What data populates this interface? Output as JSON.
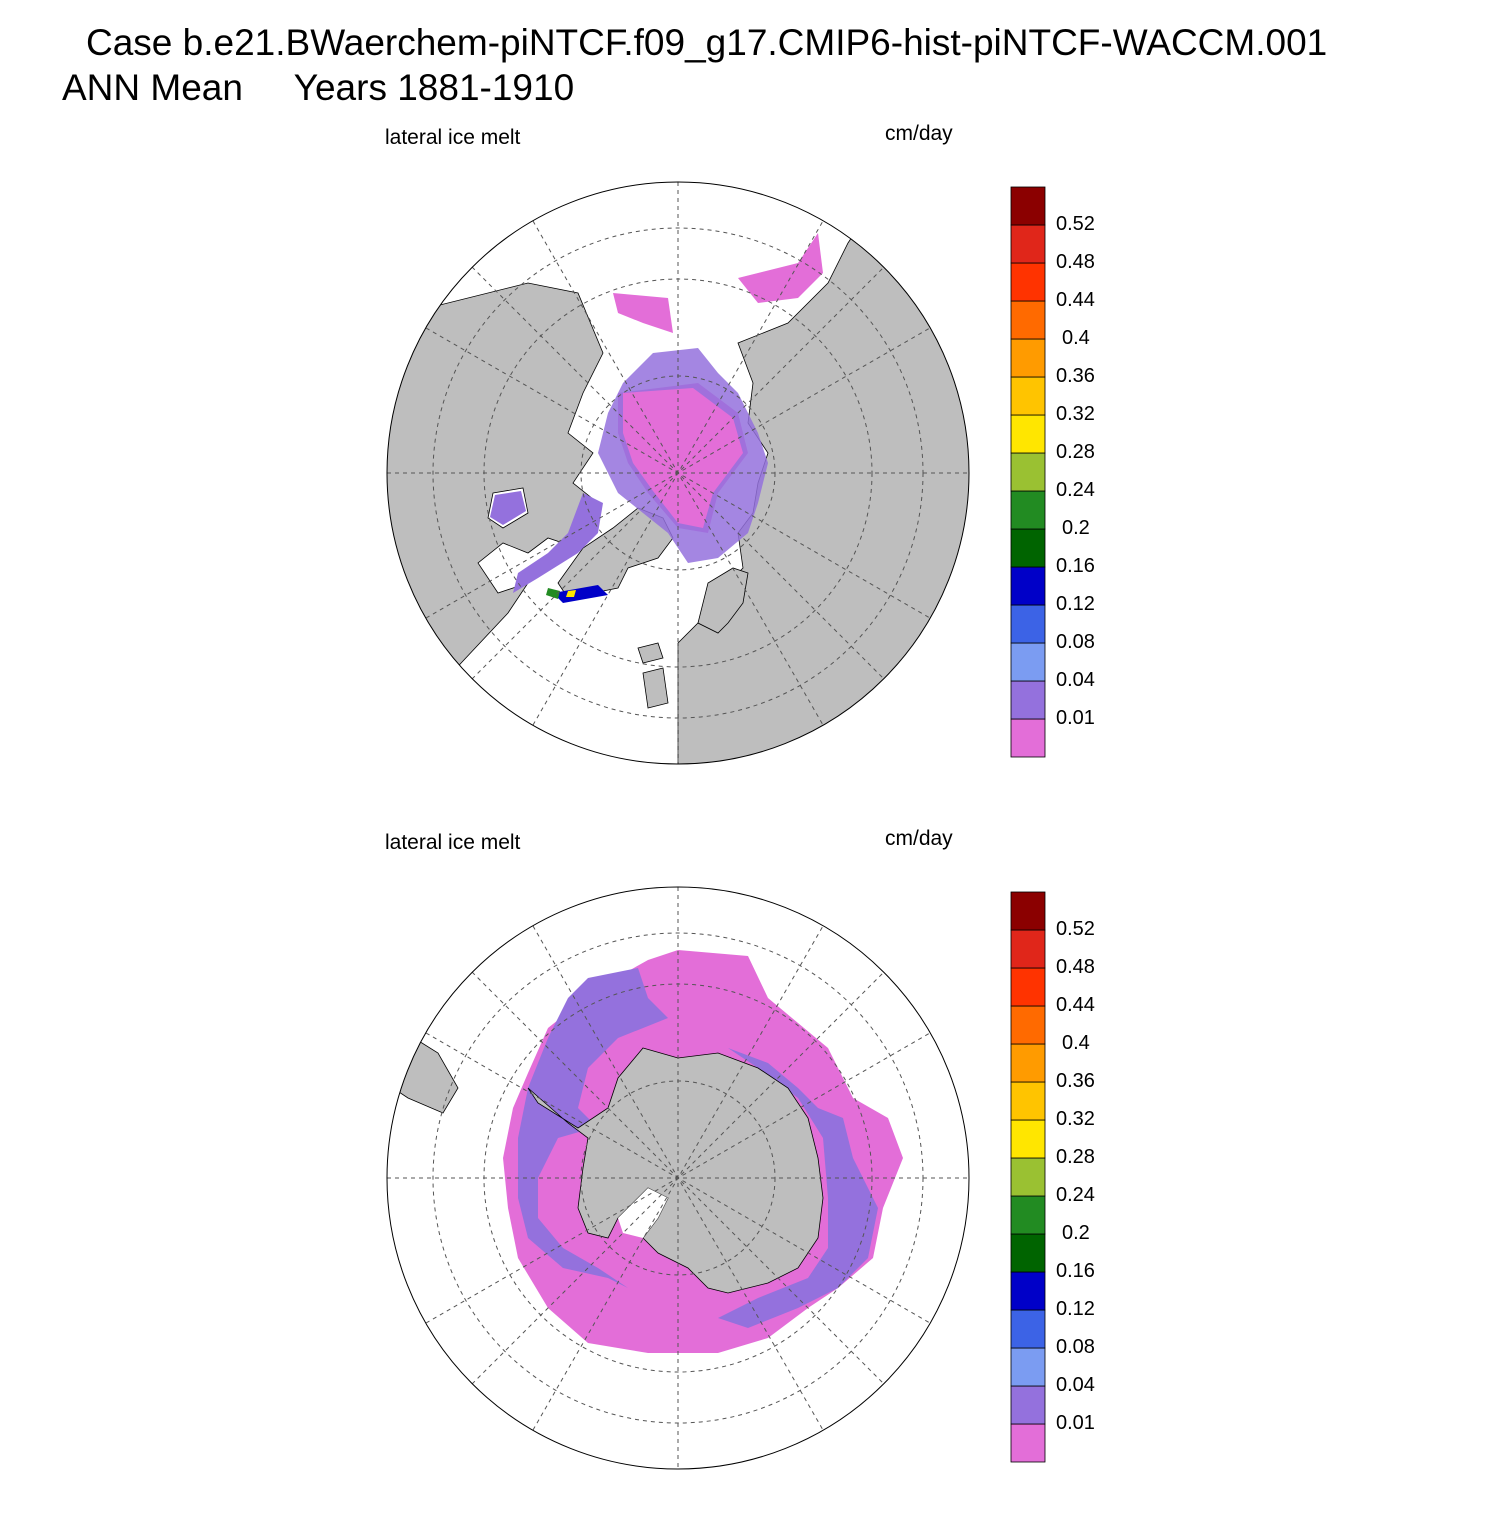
{
  "title_line1": "Case b.e21.BWaerchem-piNTCF.f09_g17.CMIP6-hist-piNTCF-WACCM.001",
  "title_line2": "ANN Mean     Years 1881-1910",
  "colors": {
    "land": "#bebebe",
    "ocean": "#ffffff",
    "grid": "#555555"
  },
  "colorbar": {
    "colors": [
      "#e36ed8",
      "#9471dd",
      "#7b9cf2",
      "#3c63e6",
      "#0000c8",
      "#006400",
      "#228b22",
      "#9ac132",
      "#ffe600",
      "#ffc400",
      "#ff9b00",
      "#ff6a00",
      "#ff3300",
      "#e0261a",
      "#8b0000"
    ],
    "levels": [
      "0.01",
      "0.04",
      "0.08",
      "0.12",
      "0.16",
      "0.2",
      "0.24",
      "0.28",
      "0.32",
      "0.36",
      "0.4",
      "0.44",
      "0.48",
      "0.52"
    ]
  },
  "panels": [
    {
      "id": "north",
      "left_label": "lateral ice melt",
      "right_label": "cm/day",
      "hemisphere": "Northern Hemisphere polar stereographic",
      "field_summary": "central Arctic 0.00-0.01 (pink), marginal seas 0.01-0.04 (purple), Baffin Bay/Labrador Sea edges up to 0.28"
    },
    {
      "id": "south",
      "left_label": "lateral ice melt",
      "right_label": "cm/day",
      "hemisphere": "Southern Hemisphere polar stereographic",
      "field_summary": "circumpolar sea-ice belt 0.00-0.04 cm/day around Antarctica"
    }
  ]
}
